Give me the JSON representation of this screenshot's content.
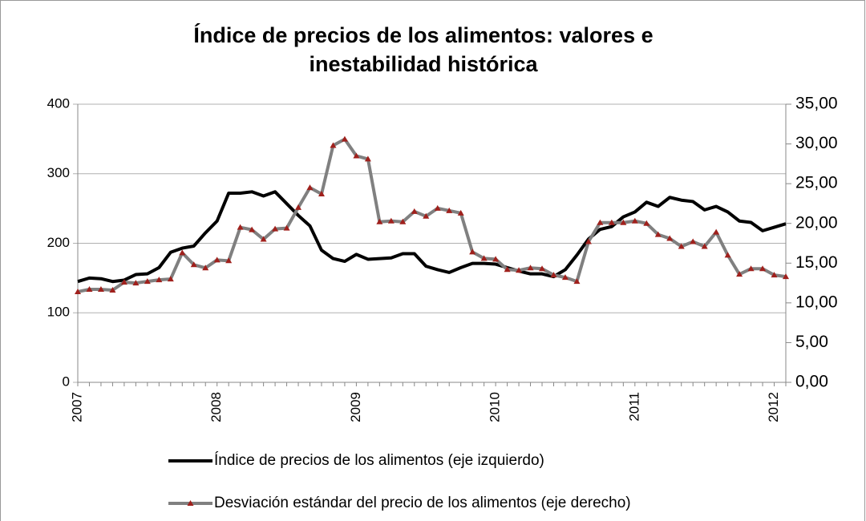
{
  "chart_data": {
    "type": "line",
    "title": [
      "Índice de precios de los alimentos: valores e",
      "inestabilidad histórica"
    ],
    "categories": [
      "2007",
      null,
      null,
      null,
      null,
      null,
      null,
      null,
      null,
      null,
      null,
      null,
      "2008",
      null,
      null,
      null,
      null,
      null,
      null,
      null,
      null,
      null,
      null,
      null,
      "2009",
      null,
      null,
      null,
      null,
      null,
      null,
      null,
      null,
      null,
      null,
      null,
      "2010",
      null,
      null,
      null,
      null,
      null,
      null,
      null,
      null,
      null,
      null,
      null,
      "2011",
      null,
      null,
      null,
      null,
      null,
      null,
      null,
      null,
      null,
      null,
      null,
      "2012",
      null
    ],
    "series": [
      {
        "name": "Índice de precios de los alimentos (eje izquierdo)",
        "color": "#000000",
        "axis": "y",
        "values": [
          145,
          150,
          149,
          145,
          147,
          155,
          156,
          165,
          187,
          193,
          196,
          215,
          232,
          272,
          272,
          274,
          268,
          274,
          257,
          240,
          225,
          190,
          178,
          174,
          184,
          177,
          178,
          179,
          185,
          185,
          167,
          162,
          158,
          165,
          171,
          171,
          170,
          165,
          160,
          156,
          156,
          152,
          162,
          183,
          206,
          220,
          224,
          238,
          245,
          259,
          253,
          266,
          262,
          260,
          248,
          253,
          245,
          232,
          230,
          218,
          223,
          228
        ]
      },
      {
        "name": "Desviación estándar del precio de los alimentos (eje derecho)",
        "color": "#808080",
        "marker_color": "#a0201c",
        "axis": "y2",
        "values": [
          11.4,
          11.7,
          11.7,
          11.6,
          12.6,
          12.5,
          12.7,
          12.9,
          13.0,
          16.3,
          14.8,
          14.4,
          15.4,
          15.3,
          19.5,
          19.2,
          18.0,
          19.3,
          19.4,
          22.0,
          24.5,
          23.7,
          29.8,
          30.6,
          28.5,
          28.1,
          20.2,
          20.3,
          20.2,
          21.5,
          20.9,
          21.9,
          21.6,
          21.3,
          16.4,
          15.6,
          15.5,
          14.2,
          14.1,
          14.4,
          14.3,
          13.5,
          13.2,
          12.7,
          17.7,
          20.1,
          20.1,
          20.1,
          20.3,
          20.0,
          18.6,
          18.1,
          17.1,
          17.7,
          17.1,
          18.9,
          16.0,
          13.6,
          14.3,
          14.3,
          13.5,
          13.3
        ]
      }
    ],
    "ylim": [
      0,
      400
    ],
    "yticks": [
      0,
      100,
      200,
      300,
      400
    ],
    "y2lim": [
      0,
      35
    ],
    "y2ticks": [
      {
        "value": 0,
        "label": "0,00"
      },
      {
        "value": 5,
        "label": "5,00"
      },
      {
        "value": 10,
        "label": "10,00"
      },
      {
        "value": 15,
        "label": "15,00"
      },
      {
        "value": 20,
        "label": "20,00"
      },
      {
        "value": 25,
        "label": "25,00"
      },
      {
        "value": 30,
        "label": "30,00"
      },
      {
        "value": 35,
        "label": "35,00"
      }
    ],
    "grid": true
  }
}
